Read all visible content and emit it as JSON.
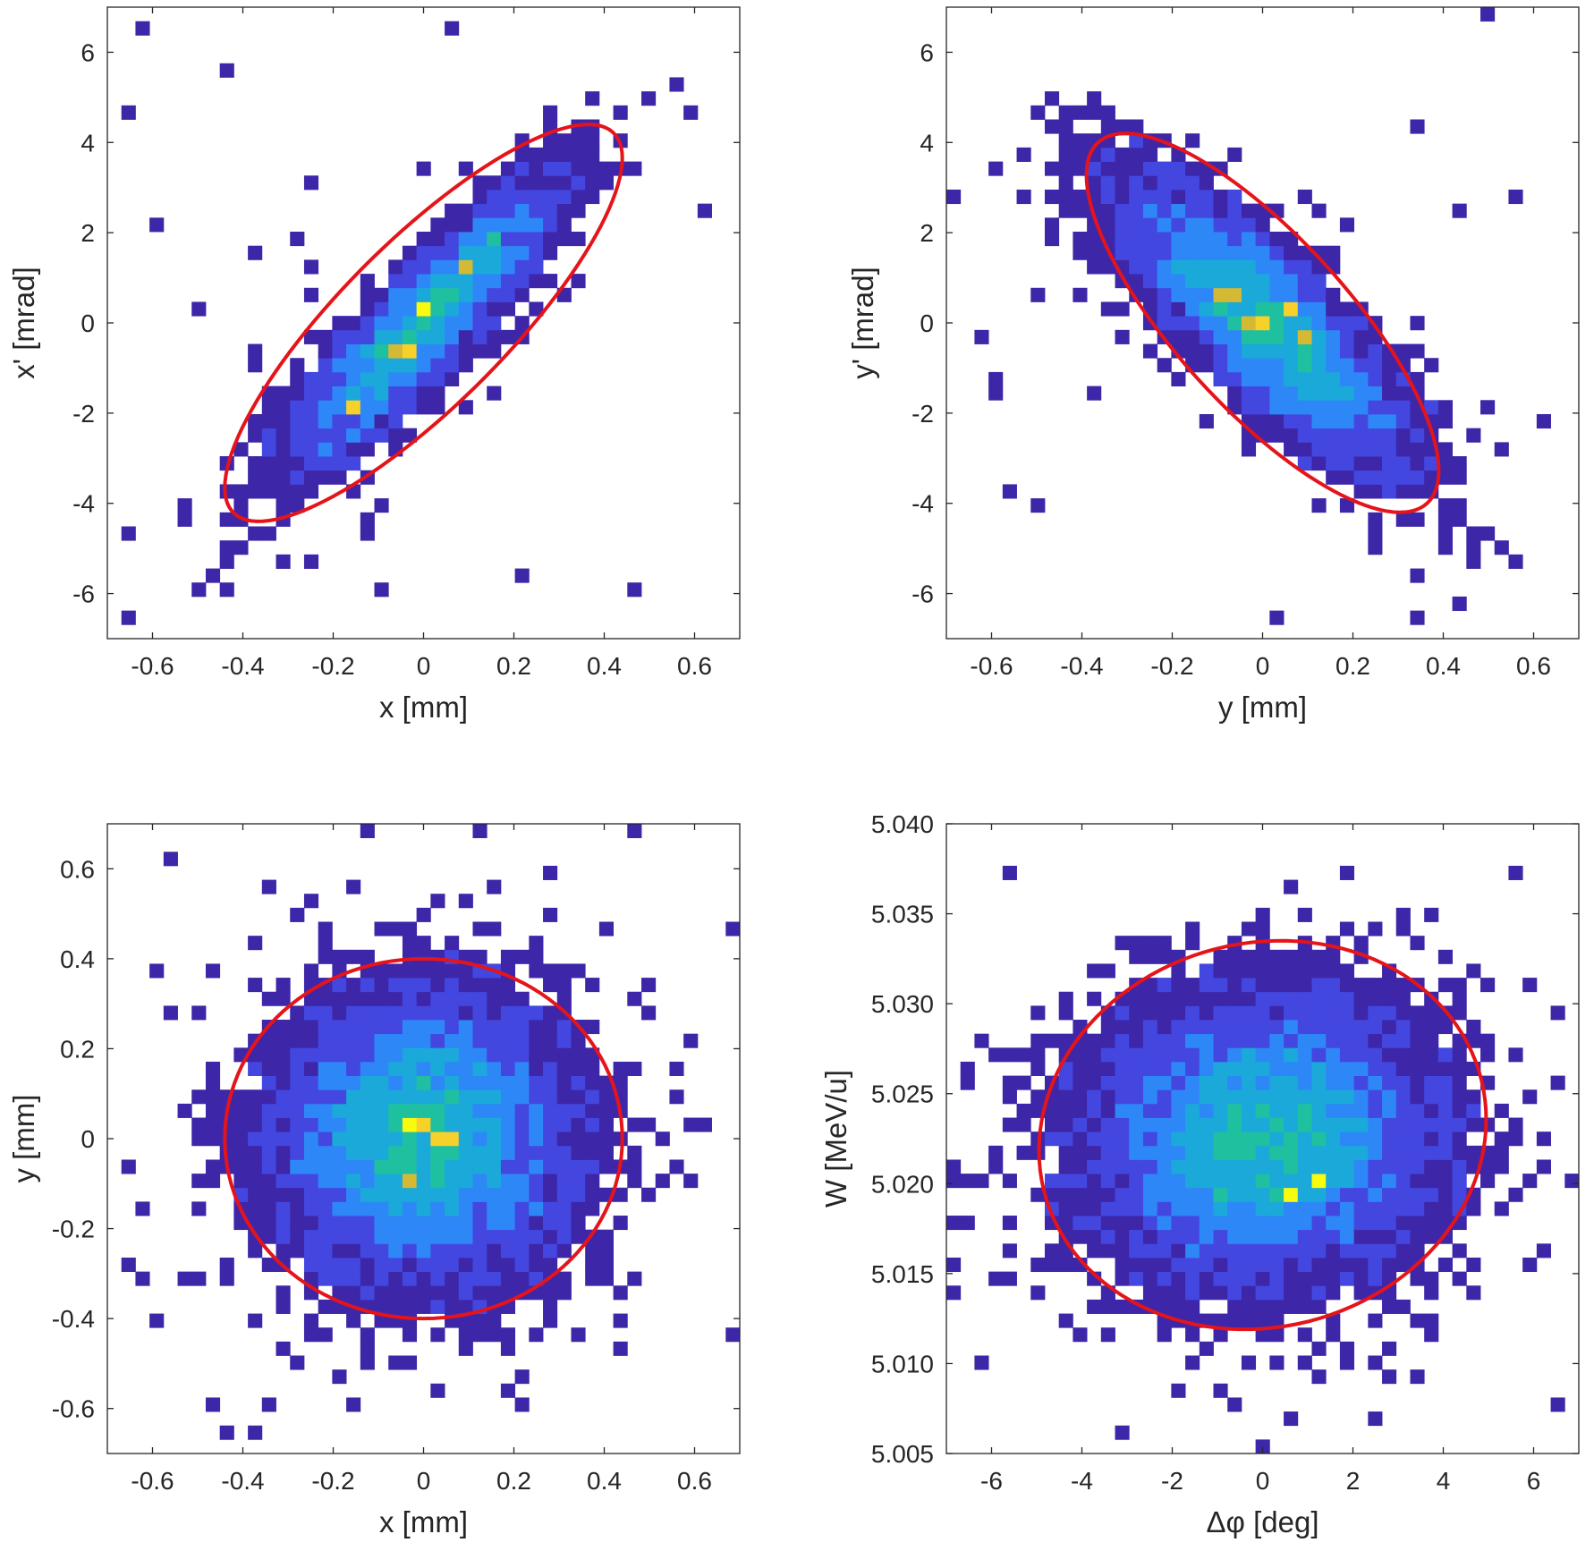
{
  "colormap": [
    "#3e26a8",
    "#4347e0",
    "#2e87f7",
    "#1ba9da",
    "#1fc0a0",
    "#7ccb60",
    "#d4b935",
    "#f7d12a",
    "#f9fb0e"
  ],
  "ellipse_color": "#e5141a",
  "chart_data": [
    {
      "id": "xx",
      "type": "heatmap",
      "title": "",
      "xlabel": "x [mm]",
      "ylabel": "x' [mrad]",
      "xlim": [
        -0.7,
        0.7
      ],
      "ylim": [
        -7,
        7
      ],
      "xticks": [
        "-0.6",
        "-0.4",
        "-0.2",
        "0",
        "0.2",
        "0.4",
        "0.6"
      ],
      "yticks": [
        "-6",
        "-4",
        "-2",
        "0",
        "2",
        "4",
        "6"
      ],
      "bins": {
        "nx": 45,
        "ny": 45
      },
      "distribution": {
        "center": [
          0,
          0
        ],
        "sigma_u": 0.18,
        "sigma_v": 1.95,
        "correlation": 0.88
      },
      "hotspots": [
        [
          0.0,
          0.3
        ],
        [
          0.1,
          1.2
        ],
        [
          -0.05,
          -0.6
        ],
        [
          0.15,
          2.0
        ],
        [
          -0.15,
          -1.8
        ]
      ],
      "ellipse": {
        "center": [
          0.0,
          0.0
        ],
        "x_halfwidth": 0.44,
        "y_halfwidth": 4.4,
        "correlation": 0.83
      }
    },
    {
      "id": "yy",
      "type": "heatmap",
      "title": "",
      "xlabel": "y [mm]",
      "ylabel": "y' [mrad]",
      "xlim": [
        -0.7,
        0.7
      ],
      "ylim": [
        -7,
        7
      ],
      "xticks": [
        "-0.6",
        "-0.4",
        "-0.2",
        "0",
        "0.2",
        "0.4",
        "0.6"
      ],
      "yticks": [
        "-6",
        "-4",
        "-2",
        "0",
        "2",
        "4",
        "6"
      ],
      "bins": {
        "nx": 45,
        "ny": 45
      },
      "distribution": {
        "center": [
          0,
          0
        ],
        "sigma_u": 0.2,
        "sigma_v": 2.0,
        "correlation": -0.82
      },
      "hotspots": [
        [
          -0.08,
          0.6
        ],
        [
          0.05,
          0.3
        ],
        [
          0.1,
          -0.4
        ],
        [
          -0.02,
          -0.1
        ]
      ],
      "ellipse": {
        "center": [
          0.0,
          0.0
        ],
        "x_halfwidth": 0.39,
        "y_halfwidth": 4.2,
        "correlation": -0.78
      }
    },
    {
      "id": "xy",
      "type": "heatmap",
      "title": "",
      "xlabel": "x [mm]",
      "ylabel": "y [mm]",
      "xlim": [
        -0.7,
        0.7
      ],
      "ylim": [
        -0.7,
        0.7
      ],
      "xticks": [
        "-0.6",
        "-0.4",
        "-0.2",
        "0",
        "0.2",
        "0.4",
        "0.6"
      ],
      "yticks": [
        "-0.6",
        "-0.4",
        "-0.2",
        "0",
        "0.2",
        "0.4",
        "0.6"
      ],
      "bins": {
        "nx": 45,
        "ny": 45
      },
      "distribution": {
        "center": [
          0,
          0
        ],
        "sigma_u": 0.2,
        "sigma_v": 0.2,
        "correlation": 0.0
      },
      "hotspots": [
        [
          -0.02,
          0.04
        ],
        [
          -0.02,
          -0.1
        ],
        [
          0.05,
          0.0
        ]
      ],
      "ellipse": {
        "center": [
          0.0,
          0.0
        ],
        "x_halfwidth": 0.44,
        "y_halfwidth": 0.4,
        "correlation": 0.0
      }
    },
    {
      "id": "phiW",
      "type": "heatmap",
      "title": "",
      "xlabel": "Δφ [deg]",
      "ylabel": "W [MeV/u]",
      "xlim": [
        -7,
        7
      ],
      "ylim": [
        5.005,
        5.04
      ],
      "xticks": [
        "-6",
        "-4",
        "-2",
        "0",
        "2",
        "4",
        "6"
      ],
      "yticks": [
        "5.005",
        "5.010",
        "5.015",
        "5.020",
        "5.025",
        "5.030",
        "5.035",
        "5.040"
      ],
      "bins": {
        "nx": 45,
        "ny": 45
      },
      "distribution": {
        "center": [
          0,
          5.0225
        ],
        "sigma_u": 2.3,
        "sigma_v": 0.0048,
        "correlation": 0.05
      },
      "hotspots": [
        [
          0.5,
          5.0195
        ],
        [
          -0.8,
          5.0195
        ],
        [
          1.2,
          5.02
        ],
        [
          0.0,
          5.019
        ]
      ],
      "ellipse": {
        "center": [
          0.0,
          5.0227
        ],
        "x_halfwidth": 4.95,
        "y_halfwidth": 0.0108,
        "correlation": 0.08
      }
    }
  ]
}
